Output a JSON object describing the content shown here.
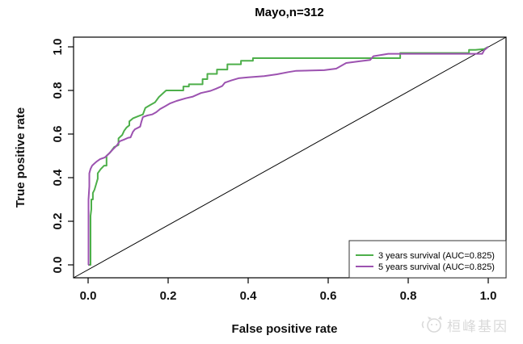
{
  "chart_data": {
    "type": "line",
    "subtype": "roc-curve",
    "title": "Mayo,n=312",
    "xlabel": "False positive rate",
    "ylabel": "True positive rate",
    "xlim": [
      0,
      1
    ],
    "ylim": [
      0,
      1
    ],
    "grid": false,
    "x_ticks": [
      "0.0",
      "0.2",
      "0.4",
      "0.6",
      "0.8",
      "1.0"
    ],
    "y_ticks": [
      "0.0",
      "0.2",
      "0.4",
      "0.6",
      "0.8",
      "1.0"
    ],
    "legend_position": "bottom-right",
    "reference_line": {
      "from": [
        0,
        0
      ],
      "to": [
        1,
        1
      ],
      "color": "#000000"
    },
    "series": [
      {
        "name": "3 years survival",
        "auc": "0.825",
        "label": "3 years survival (AUC=0.825)",
        "color": "#4daf4a",
        "points": [
          [
            0,
            0
          ],
          [
            0.006,
            0
          ],
          [
            0.006,
            0.225
          ],
          [
            0.008,
            0.255
          ],
          [
            0.008,
            0.3
          ],
          [
            0.012,
            0.3
          ],
          [
            0.012,
            0.33
          ],
          [
            0.016,
            0.345
          ],
          [
            0.02,
            0.37
          ],
          [
            0.024,
            0.395
          ],
          [
            0.024,
            0.42
          ],
          [
            0.032,
            0.44
          ],
          [
            0.04,
            0.455
          ],
          [
            0.046,
            0.455
          ],
          [
            0.046,
            0.5
          ],
          [
            0.055,
            0.515
          ],
          [
            0.065,
            0.54
          ],
          [
            0.076,
            0.55
          ],
          [
            0.076,
            0.58
          ],
          [
            0.085,
            0.595
          ],
          [
            0.09,
            0.615
          ],
          [
            0.096,
            0.63
          ],
          [
            0.103,
            0.64
          ],
          [
            0.103,
            0.658
          ],
          [
            0.112,
            0.672
          ],
          [
            0.125,
            0.682
          ],
          [
            0.137,
            0.69
          ],
          [
            0.143,
            0.72
          ],
          [
            0.155,
            0.733
          ],
          [
            0.167,
            0.745
          ],
          [
            0.177,
            0.77
          ],
          [
            0.186,
            0.785
          ],
          [
            0.195,
            0.8
          ],
          [
            0.238,
            0.8
          ],
          [
            0.238,
            0.818
          ],
          [
            0.252,
            0.818
          ],
          [
            0.252,
            0.828
          ],
          [
            0.286,
            0.828
          ],
          [
            0.286,
            0.852
          ],
          [
            0.298,
            0.852
          ],
          [
            0.298,
            0.876
          ],
          [
            0.322,
            0.876
          ],
          [
            0.322,
            0.896
          ],
          [
            0.348,
            0.896
          ],
          [
            0.348,
            0.92
          ],
          [
            0.382,
            0.92
          ],
          [
            0.382,
            0.936
          ],
          [
            0.412,
            0.936
          ],
          [
            0.412,
            0.948
          ],
          [
            0.78,
            0.948
          ],
          [
            0.78,
            0.972
          ],
          [
            0.952,
            0.972
          ],
          [
            0.952,
            0.986
          ],
          [
            0.968,
            0.986
          ],
          [
            0.99,
            0.99
          ],
          [
            1,
            1
          ]
        ]
      },
      {
        "name": "5 years survival",
        "auc": "0.825",
        "label": "5 years survival (AUC=0.825)",
        "color": "#9c52b0",
        "points": [
          [
            0,
            0
          ],
          [
            0.001,
            0
          ],
          [
            0.001,
            0.3
          ],
          [
            0.003,
            0.36
          ],
          [
            0.003,
            0.42
          ],
          [
            0.006,
            0.44
          ],
          [
            0.01,
            0.455
          ],
          [
            0.016,
            0.465
          ],
          [
            0.022,
            0.475
          ],
          [
            0.03,
            0.485
          ],
          [
            0.042,
            0.493
          ],
          [
            0.052,
            0.51
          ],
          [
            0.062,
            0.53
          ],
          [
            0.072,
            0.548
          ],
          [
            0.079,
            0.567
          ],
          [
            0.09,
            0.575
          ],
          [
            0.1,
            0.583
          ],
          [
            0.106,
            0.585
          ],
          [
            0.112,
            0.61
          ],
          [
            0.117,
            0.622
          ],
          [
            0.13,
            0.634
          ],
          [
            0.133,
            0.655
          ],
          [
            0.137,
            0.678
          ],
          [
            0.148,
            0.685
          ],
          [
            0.16,
            0.69
          ],
          [
            0.17,
            0.7
          ],
          [
            0.18,
            0.715
          ],
          [
            0.192,
            0.727
          ],
          [
            0.204,
            0.74
          ],
          [
            0.221,
            0.752
          ],
          [
            0.244,
            0.764
          ],
          [
            0.262,
            0.772
          ],
          [
            0.282,
            0.788
          ],
          [
            0.306,
            0.798
          ],
          [
            0.32,
            0.808
          ],
          [
            0.335,
            0.82
          ],
          [
            0.342,
            0.836
          ],
          [
            0.358,
            0.846
          ],
          [
            0.376,
            0.856
          ],
          [
            0.4,
            0.86
          ],
          [
            0.44,
            0.866
          ],
          [
            0.472,
            0.874
          ],
          [
            0.5,
            0.884
          ],
          [
            0.52,
            0.89
          ],
          [
            0.59,
            0.893
          ],
          [
            0.62,
            0.9
          ],
          [
            0.645,
            0.926
          ],
          [
            0.68,
            0.934
          ],
          [
            0.705,
            0.94
          ],
          [
            0.713,
            0.957
          ],
          [
            0.75,
            0.968
          ],
          [
            0.985,
            0.968
          ],
          [
            0.99,
            0.985
          ],
          [
            1,
            1
          ]
        ]
      }
    ]
  },
  "watermark": {
    "text": "桓峰基因",
    "logo": "animal-face-logo",
    "color": "#d9d9d9"
  }
}
